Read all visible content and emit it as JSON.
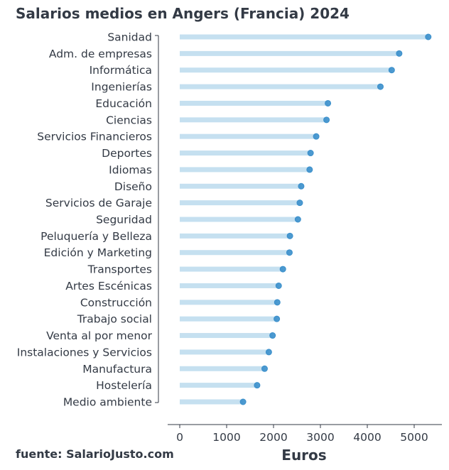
{
  "chart_data": {
    "type": "dot",
    "title": "Salarios medios en Angers (Francia) 2024",
    "xlabel": "Euros",
    "source": "fuente: SalarioJusto.com",
    "xlim": [
      0,
      5500
    ],
    "xticks": [
      0,
      1000,
      2000,
      3000,
      4000,
      5000
    ],
    "xtick_labels": [
      "0",
      "1000",
      "2000",
      "3000",
      "4000",
      "5000"
    ],
    "grid": false,
    "colors": {
      "bar": "#c5e0f0",
      "dot": "#3a8fcb",
      "text": "#333a45"
    },
    "categories": [
      "Sanidad",
      "Adm. de empresas",
      "Informática",
      "Ingenierías",
      "Educación",
      "Ciencias",
      "Servicios Financieros",
      "Deportes",
      "Idiomas",
      "Diseño",
      "Servicios de Garaje",
      "Seguridad",
      "Peluquería y Belleza",
      "Edición y Marketing",
      "Transportes",
      "Artes Escénicas",
      "Construcción",
      "Trabajo social",
      "Venta al por menor",
      "Instalaciones y Servicios",
      "Manufactura",
      "Hostelería",
      "Medio ambiente"
    ],
    "values": [
      5300,
      4680,
      4520,
      4280,
      3160,
      3130,
      2910,
      2790,
      2770,
      2590,
      2560,
      2520,
      2350,
      2340,
      2200,
      2110,
      2080,
      2070,
      1980,
      1900,
      1810,
      1650,
      1350
    ]
  }
}
